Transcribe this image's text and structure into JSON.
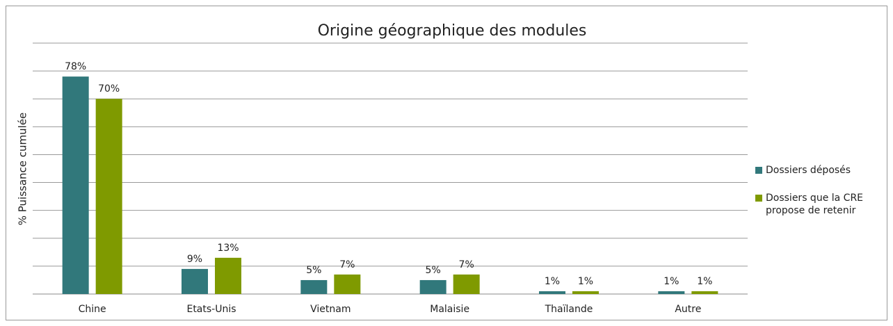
{
  "chart_data": {
    "type": "bar",
    "title": "Origine géographique des modules",
    "y_label": "% Puissance cumulée",
    "categories": [
      "Chine",
      "Etats-Unis",
      "Vietnam",
      "Malaisie",
      "Thaïlande",
      "Autre"
    ],
    "series": [
      {
        "name": "Dossiers déposés",
        "color": "#31787b",
        "values": [
          78,
          9,
          5,
          5,
          1,
          1
        ],
        "value_labels": [
          "78%",
          "9%",
          "5%",
          "5%",
          "1%",
          "1%"
        ]
      },
      {
        "name": "Dossiers que la CRE propose de retenir",
        "color": "#7f9a00",
        "values": [
          70,
          13,
          7,
          7,
          1,
          1
        ],
        "value_labels": [
          "70%",
          "13%",
          "7%",
          "7%",
          "1%",
          "1%"
        ]
      }
    ],
    "ylim": [
      0,
      90
    ],
    "yticks": [
      0,
      10,
      20,
      30,
      40,
      50,
      60,
      70,
      80,
      90
    ],
    "grid": true,
    "legend": "right"
  }
}
